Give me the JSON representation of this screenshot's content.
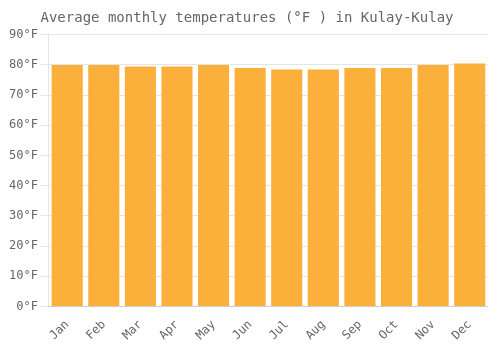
{
  "chart_data": {
    "type": "bar",
    "title": "Average monthly temperatures (°F ) in Kulay-Kulay",
    "categories": [
      "Jan",
      "Feb",
      "Mar",
      "Apr",
      "May",
      "Jun",
      "Jul",
      "Aug",
      "Sep",
      "Oct",
      "Nov",
      "Dec"
    ],
    "values": [
      80,
      80,
      79.5,
      79.5,
      80,
      79,
      78.5,
      78.5,
      79,
      79,
      80,
      80.5
    ],
    "color": "#FBB03B",
    "ylim": [
      0,
      90
    ],
    "yticks": [
      {
        "value": 0,
        "label": "0°F"
      },
      {
        "value": 10,
        "label": "10°F"
      },
      {
        "value": 20,
        "label": "20°F"
      },
      {
        "value": 30,
        "label": "30°F"
      },
      {
        "value": 40,
        "label": "40°F"
      },
      {
        "value": 50,
        "label": "50°F"
      },
      {
        "value": 60,
        "label": "60°F"
      },
      {
        "value": 70,
        "label": "70°F"
      },
      {
        "value": 80,
        "label": "80°F"
      },
      {
        "value": 90,
        "label": "90°F"
      }
    ],
    "grid": true
  }
}
